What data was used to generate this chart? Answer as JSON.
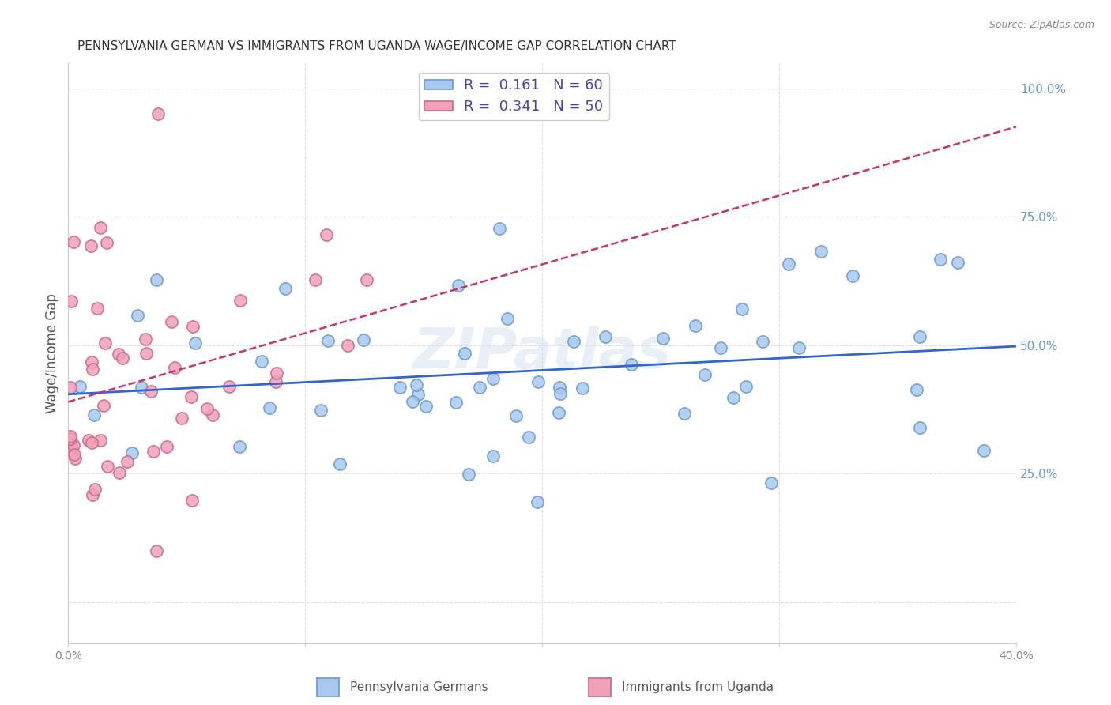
{
  "title": "PENNSYLVANIA GERMAN VS IMMIGRANTS FROM UGANDA WAGE/INCOME GAP CORRELATION CHART",
  "source": "Source: ZipAtlas.com",
  "ylabel": "Wage/Income Gap",
  "yticks": [
    0.0,
    0.25,
    0.5,
    0.75,
    1.0
  ],
  "ytick_labels": [
    "",
    "25.0%",
    "50.0%",
    "75.0%",
    "100.0%"
  ],
  "xmin": 0.0,
  "xmax": 0.4,
  "ymin": -0.08,
  "ymax": 1.05,
  "blue_R": 0.161,
  "blue_N": 60,
  "pink_R": 0.341,
  "pink_N": 50,
  "legend_label_blue": "Pennsylvania Germans",
  "legend_label_pink": "Immigrants from Uganda",
  "watermark": "ZIPatlas",
  "blue_color": "#a8c8f0",
  "pink_color": "#f0a0b8",
  "blue_edge": "#6699cc",
  "pink_edge": "#cc6688",
  "blue_line_color": "#3366cc",
  "pink_line_color": "#cc3366",
  "title_color": "#333333",
  "axis_color": "#6699cc",
  "grid_color": "#ddddee",
  "background_color": "#ffffff"
}
